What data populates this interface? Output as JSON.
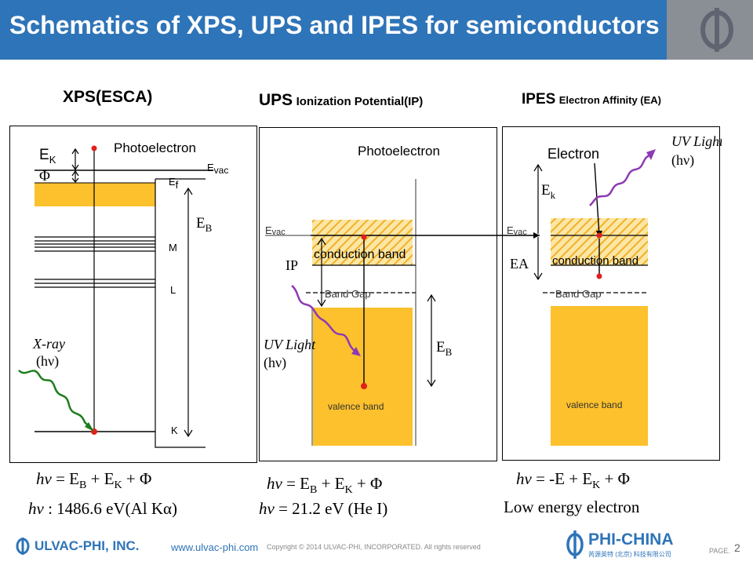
{
  "header": {
    "title": "Schematics of XPS, UPS and IPES for semiconductors"
  },
  "sections": {
    "xps": {
      "title": "XPS(ESCA)"
    },
    "ups": {
      "title": "UPS",
      "subtitle": "Ionization Potential(IP)"
    },
    "ipes": {
      "title": "IPES",
      "subtitle": "Electron Affinity (EA)"
    }
  },
  "xps_panel": {
    "photoelectron": "Photoelectron",
    "ek": "E",
    "ek_sub": "K",
    "phi": "Φ",
    "evac": "E",
    "evac_sub": "vac",
    "ef": "E",
    "ef_sub": "f",
    "eb": "E",
    "eb_sub": "B",
    "m": "M",
    "l": "L",
    "k": "K",
    "xray": "X-ray",
    "hv": "(hν)"
  },
  "ups_panel": {
    "photoelectron": "Photoelectron",
    "evac": "E",
    "evac_sub": "vac",
    "conduction": "conduction band",
    "bandgap": "Band Gap",
    "valence": "valence band",
    "ip": "IP",
    "uv": "UV Light",
    "hv": "(hν)",
    "eb": "E",
    "eb_sub": "B"
  },
  "ipes_panel": {
    "electron": "Electron",
    "ek": "E",
    "ek_sub": "k",
    "evac": "E",
    "evac_sub": "vac",
    "ea": "EA",
    "conduction": "conduction band",
    "bandgap": "Band Gap",
    "valence": "valence band",
    "uv": "UV Light",
    "hv": "(hν)"
  },
  "equations": {
    "xps_main": "hν = E_B + E_K + Φ",
    "xps_energy": "hν : 1486.6 eV(Al Kα)",
    "ups_main": "hν = E_B + E_K + Φ",
    "ups_energy": "hν = 21.2 eV (He I)",
    "ipes_main": "hν = -E + E_K + Φ",
    "ipes_note": "Low energy electron"
  },
  "footer": {
    "brand": "ULVAC-PHI, INC.",
    "url": "www.ulvac-phi.com",
    "copyright": "Copyright © 2014 ULVAC-PHI, INCORPORATED. All rights reserved",
    "partner": "PHI-CHINA",
    "partner_sub": "芮源英特 (北京) 科技有限公司",
    "page_label": "PAGE.",
    "page_number": "2"
  },
  "colors": {
    "header_blue": "#2e74b8",
    "band_yellow": "#fcc12c",
    "arrow_green": "#1e7d1e",
    "arrow_purple": "#8e3ab4",
    "dot_red": "#e0201c"
  }
}
